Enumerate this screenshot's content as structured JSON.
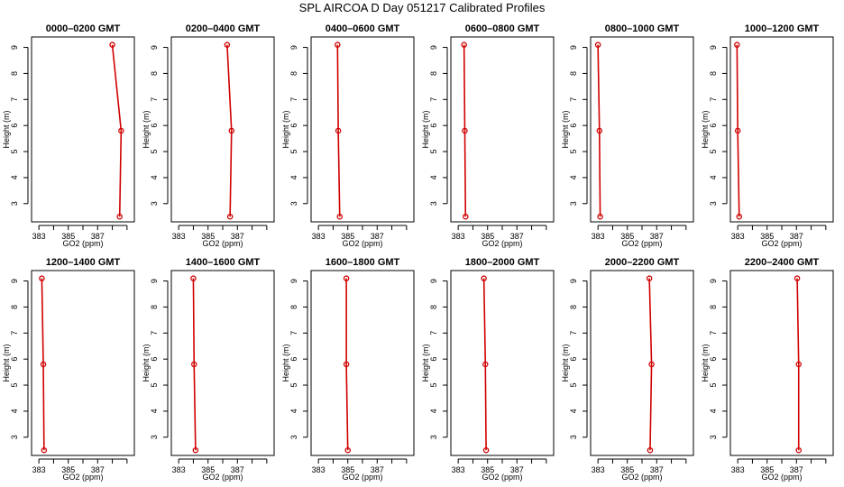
{
  "title": "SPL AIRCOA D  Day 051217  Calibrated Profiles",
  "chart_data": {
    "type": "line",
    "xlabel": "GO2 (ppm)",
    "ylabel": "Height (m)",
    "xlim": [
      382.5,
      389.5
    ],
    "ylim": [
      2.3,
      9.4
    ],
    "xticks": [
      383,
      384,
      385,
      386,
      387,
      388,
      389
    ],
    "xtick_labels": [
      "383",
      "",
      "385",
      "",
      "387",
      "",
      ""
    ],
    "yticks": [
      3,
      4,
      5,
      6,
      7,
      8,
      9
    ],
    "ytick_labels": [
      "3",
      "4",
      "5",
      "6",
      "7",
      "8",
      "9"
    ],
    "heights": [
      9.1,
      5.8,
      2.5
    ],
    "panels": [
      {
        "title": "0000–0200 GMT",
        "x": [
          388.0,
          388.6,
          388.5
        ]
      },
      {
        "title": "0200–0400 GMT",
        "x": [
          386.3,
          386.6,
          386.5
        ]
      },
      {
        "title": "0400–0600 GMT",
        "x": [
          384.3,
          384.35,
          384.45
        ]
      },
      {
        "title": "0600–0800 GMT",
        "x": [
          383.4,
          383.45,
          383.5
        ]
      },
      {
        "title": "0800–1000 GMT",
        "x": [
          383.0,
          383.1,
          383.15
        ]
      },
      {
        "title": "1000–1200 GMT",
        "x": [
          382.95,
          383.0,
          383.1
        ]
      },
      {
        "title": "1200–1400 GMT",
        "x": [
          383.2,
          383.3,
          383.35
        ]
      },
      {
        "title": "1400–1600 GMT",
        "x": [
          384.0,
          384.05,
          384.15
        ]
      },
      {
        "title": "1600–1800 GMT",
        "x": [
          384.9,
          384.9,
          385.0
        ]
      },
      {
        "title": "1800–2000 GMT",
        "x": [
          384.75,
          384.85,
          384.9
        ]
      },
      {
        "title": "2000–2200 GMT",
        "x": [
          386.5,
          386.65,
          386.55
        ]
      },
      {
        "title": "2200–2400 GMT",
        "x": [
          387.05,
          387.15,
          387.15
        ]
      }
    ]
  }
}
